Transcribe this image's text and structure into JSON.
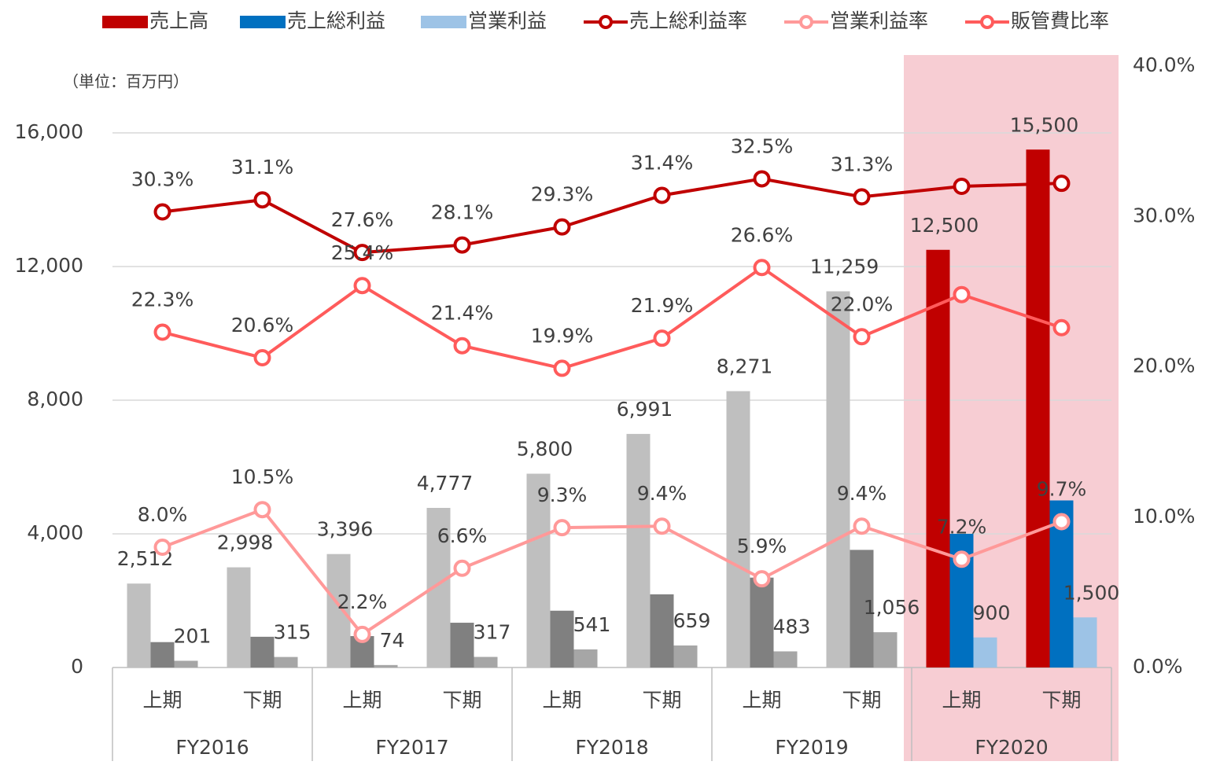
{
  "chart_data": {
    "type": "bar-line",
    "unit_note": "（単位：百万円）",
    "categories": [
      "上期",
      "下期",
      "上期",
      "下期",
      "上期",
      "下期",
      "上期",
      "下期",
      "上期",
      "下期"
    ],
    "group_labels": [
      "FY2016",
      "FY2017",
      "FY2018",
      "FY2019",
      "FY2020"
    ],
    "highlight": {
      "group": "FY2020",
      "color": "#f7cdd3"
    },
    "ylim": [
      0,
      18000
    ],
    "yticks": [
      0,
      {
        "value": 4000,
        "label": "4,000"
      },
      {
        "value": 8000,
        "label": "8,000"
      },
      {
        "value": 12000,
        "label": "12,000"
      },
      {
        "value": 16000,
        "label": "16,000"
      }
    ],
    "y2lim": [
      0,
      40
    ],
    "y2ticks": [
      {
        "value": 0,
        "label": "0.0%"
      },
      {
        "value": 10,
        "label": "10.0%"
      },
      {
        "value": 20,
        "label": "20.0%"
      },
      {
        "value": 30,
        "label": "30.0%"
      },
      {
        "value": 40,
        "label": "40.0%"
      }
    ],
    "grid": true,
    "series": [
      {
        "name": "売上高",
        "type": "bar",
        "color": "#c00000",
        "muted_color": "#bfbfbf",
        "values": [
          2512,
          2998,
          3396,
          4777,
          5800,
          6991,
          8271,
          11259,
          12500,
          15500
        ],
        "value_labels": [
          "2,512",
          "2,998",
          "3,396",
          "4,777",
          "5,800",
          "6,991",
          "8,271",
          "11,259",
          "12,500",
          "15,500"
        ]
      },
      {
        "name": "売上総利益",
        "type": "bar",
        "color": "#0070c0",
        "muted_color": "#808080",
        "values": [
          760,
          920,
          940,
          1340,
          1700,
          2190,
          2690,
          3520,
          4000,
          5000
        ]
      },
      {
        "name": "営業利益",
        "type": "bar",
        "color": "#9dc3e6",
        "muted_color": "#a6a6a6",
        "values": [
          201,
          315,
          74,
          317,
          541,
          659,
          483,
          1056,
          900,
          1500
        ],
        "value_labels": [
          "201",
          "315",
          "74",
          "317",
          "541",
          "659",
          "483",
          "1,056",
          "900",
          "1,500"
        ]
      },
      {
        "name": "売上総利益率",
        "type": "line",
        "axis": "y2",
        "color": "#c00000",
        "values": [
          30.3,
          31.1,
          27.6,
          28.1,
          29.3,
          31.4,
          32.5,
          31.3,
          32.0,
          32.2
        ],
        "value_labels": [
          "30.3%",
          "31.1%",
          "27.6%",
          "28.1%",
          "29.3%",
          "31.4%",
          "32.5%",
          "31.3%",
          null,
          null
        ]
      },
      {
        "name": "営業利益率",
        "type": "line",
        "axis": "y2",
        "color": "#ff9999",
        "values": [
          8.0,
          10.5,
          2.2,
          6.6,
          9.3,
          9.4,
          5.9,
          9.4,
          7.2,
          9.7
        ],
        "value_labels": [
          "8.0%",
          "10.5%",
          "2.2%",
          "6.6%",
          "9.3%",
          "9.4%",
          "5.9%",
          "9.4%",
          "7.2%",
          "9.7%"
        ]
      },
      {
        "name": "販管費比率",
        "type": "line",
        "axis": "y2",
        "color": "#ff5b5b",
        "values": [
          22.3,
          20.6,
          25.4,
          21.4,
          19.9,
          21.9,
          26.6,
          22.0,
          24.8,
          22.6
        ],
        "value_labels": [
          "22.3%",
          "20.6%",
          "25.4%",
          "21.4%",
          "19.9%",
          "21.9%",
          "26.6%",
          "22.0%",
          null,
          null
        ]
      }
    ]
  }
}
